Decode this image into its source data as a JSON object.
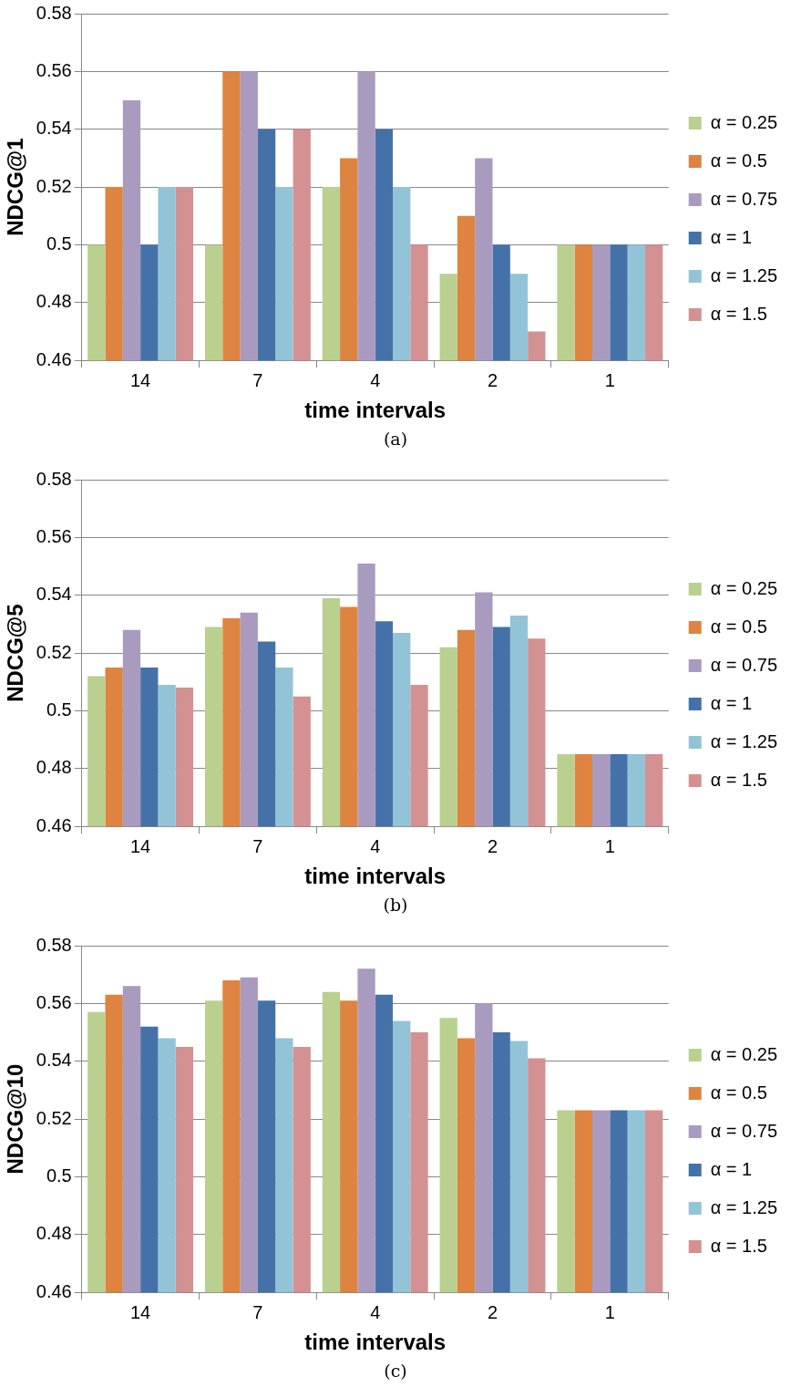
{
  "chart_data": [
    {
      "type": "bar",
      "xlabel": "time intervals",
      "ylabel": "NDCG@1",
      "categories": [
        "14",
        "7",
        "4",
        "2",
        "1"
      ],
      "ylim": [
        0.46,
        0.58
      ],
      "yticks": [
        0.46,
        0.48,
        0.5,
        0.52,
        0.54,
        0.56,
        0.58
      ],
      "grid": "y",
      "legend": "right",
      "annotations": [
        "(a)"
      ],
      "series": [
        {
          "name": "α = 0.25",
          "color": "#b9d08f",
          "values": [
            0.5,
            0.5,
            0.52,
            0.49,
            0.5
          ]
        },
        {
          "name": "α = 0.5",
          "color": "#de8340",
          "values": [
            0.52,
            0.56,
            0.53,
            0.51,
            0.5
          ]
        },
        {
          "name": "α = 0.75",
          "color": "#a99bc0",
          "values": [
            0.55,
            0.56,
            0.56,
            0.53,
            0.5
          ]
        },
        {
          "name": "α = 1",
          "color": "#4472a8",
          "values": [
            0.5,
            0.54,
            0.54,
            0.5,
            0.5
          ]
        },
        {
          "name": "α = 1.25",
          "color": "#93c3d6",
          "values": [
            0.52,
            0.52,
            0.52,
            0.49,
            0.5
          ]
        },
        {
          "name": "α = 1.5",
          "color": "#d49191",
          "values": [
            0.52,
            0.54,
            0.5,
            0.47,
            0.5
          ]
        }
      ]
    },
    {
      "type": "bar",
      "xlabel": "time intervals",
      "ylabel": "NDCG@5",
      "categories": [
        "14",
        "7",
        "4",
        "2",
        "1"
      ],
      "ylim": [
        0.46,
        0.58
      ],
      "yticks": [
        0.46,
        0.48,
        0.5,
        0.52,
        0.54,
        0.56,
        0.58
      ],
      "grid": "y",
      "legend": "right",
      "annotations": [
        "(b)"
      ],
      "series": [
        {
          "name": "α = 0.25",
          "color": "#b9d08f",
          "values": [
            0.512,
            0.529,
            0.539,
            0.522,
            0.485
          ]
        },
        {
          "name": "α = 0.5",
          "color": "#de8340",
          "values": [
            0.515,
            0.532,
            0.536,
            0.528,
            0.485
          ]
        },
        {
          "name": "α = 0.75",
          "color": "#a99bc0",
          "values": [
            0.528,
            0.534,
            0.551,
            0.541,
            0.485
          ]
        },
        {
          "name": "α = 1",
          "color": "#4472a8",
          "values": [
            0.515,
            0.524,
            0.531,
            0.529,
            0.485
          ]
        },
        {
          "name": "α = 1.25",
          "color": "#93c3d6",
          "values": [
            0.509,
            0.515,
            0.527,
            0.533,
            0.485
          ]
        },
        {
          "name": "α = 1.5",
          "color": "#d49191",
          "values": [
            0.508,
            0.505,
            0.509,
            0.525,
            0.485
          ]
        }
      ]
    },
    {
      "type": "bar",
      "xlabel": "time intervals",
      "ylabel": "NDCG@10",
      "categories": [
        "14",
        "7",
        "4",
        "2",
        "1"
      ],
      "ylim": [
        0.46,
        0.58
      ],
      "yticks": [
        0.46,
        0.48,
        0.5,
        0.52,
        0.54,
        0.56,
        0.58
      ],
      "grid": "y",
      "legend": "right",
      "annotations": [
        "(c)"
      ],
      "series": [
        {
          "name": "α = 0.25",
          "color": "#b9d08f",
          "values": [
            0.557,
            0.561,
            0.564,
            0.555,
            0.523
          ]
        },
        {
          "name": "α = 0.5",
          "color": "#de8340",
          "values": [
            0.563,
            0.568,
            0.561,
            0.548,
            0.523
          ]
        },
        {
          "name": "α = 0.75",
          "color": "#a99bc0",
          "values": [
            0.566,
            0.569,
            0.572,
            0.56,
            0.523
          ]
        },
        {
          "name": "α = 1",
          "color": "#4472a8",
          "values": [
            0.552,
            0.561,
            0.563,
            0.55,
            0.523
          ]
        },
        {
          "name": "α = 1.25",
          "color": "#93c3d6",
          "values": [
            0.548,
            0.548,
            0.554,
            0.547,
            0.523
          ]
        },
        {
          "name": "α = 1.5",
          "color": "#d49191",
          "values": [
            0.545,
            0.545,
            0.55,
            0.541,
            0.523
          ]
        }
      ]
    }
  ]
}
